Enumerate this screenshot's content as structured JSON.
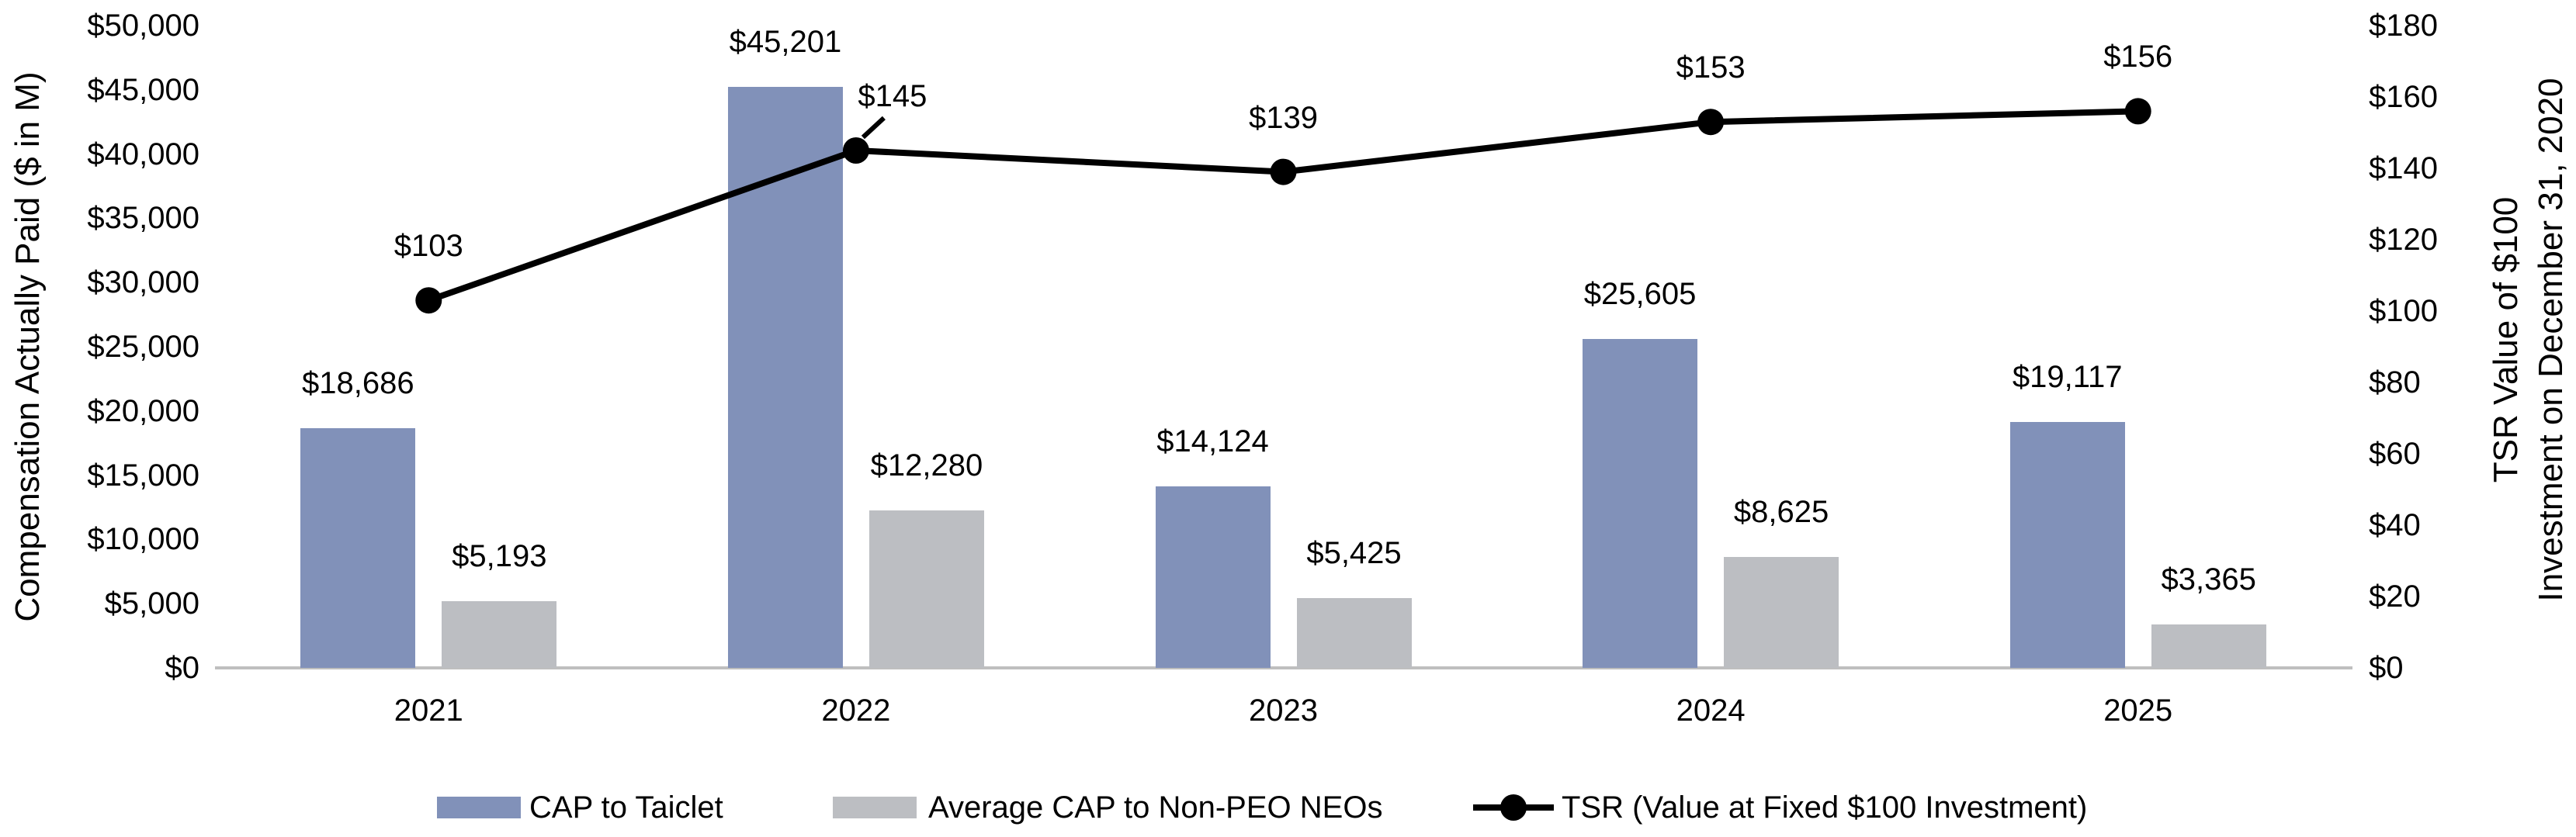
{
  "chart_data": {
    "type": "combo-bar-line",
    "categories": [
      "2021",
      "2022",
      "2023",
      "2024",
      "2025"
    ],
    "series": [
      {
        "name": "CAP to Taiclet",
        "type": "bar",
        "axis": "left",
        "color": "#8191B9",
        "values": [
          18686,
          45201,
          14124,
          25605,
          19117
        ],
        "value_labels": [
          "$18,686",
          "$45,201",
          "$14,124",
          "$25,605",
          "$19,117"
        ]
      },
      {
        "name": "Average CAP to Non-PEO NEOs",
        "type": "bar",
        "axis": "left",
        "color": "#BCBEC2",
        "values": [
          5193,
          12280,
          5425,
          8625,
          3365
        ],
        "value_labels": [
          "$5,193",
          "$12,280",
          "$5,425",
          "$8,625",
          "$3,365"
        ]
      },
      {
        "name": "TSR (Value at Fixed $100 Investment)",
        "type": "line",
        "axis": "right",
        "color": "#000000",
        "values": [
          103,
          145,
          139,
          153,
          156
        ],
        "value_labels": [
          "$103",
          "$145",
          "$139",
          "$153",
          "$156"
        ],
        "label_offsets": [
          {
            "dx": 0,
            "leader": false
          },
          {
            "dx": 47,
            "leader": true
          },
          {
            "dx": 0,
            "leader": false
          },
          {
            "dx": 0,
            "leader": false
          },
          {
            "dx": 0,
            "leader": false
          }
        ]
      }
    ],
    "left_axis": {
      "title": "Compensation Actually Paid ($ in M)",
      "min": 0,
      "max": 50000,
      "step": 5000,
      "tick_labels": [
        "$0",
        "$5,000",
        "$10,000",
        "$15,000",
        "$20,000",
        "$25,000",
        "$30,000",
        "$35,000",
        "$40,000",
        "$45,000",
        "$50,000"
      ]
    },
    "right_axis": {
      "title_lines": [
        "TSR Value of $100",
        "Investment on December 31, 2020"
      ],
      "min": 0,
      "max": 180,
      "step": 20,
      "tick_labels": [
        "$0",
        "$20",
        "$40",
        "$60",
        "$80",
        "$100",
        "$120",
        "$140",
        "$160",
        "$180"
      ]
    },
    "axis_line_color": "#BFBFBF",
    "grid": false,
    "legend_position": "bottom",
    "background_color": "#FFFFFF"
  }
}
